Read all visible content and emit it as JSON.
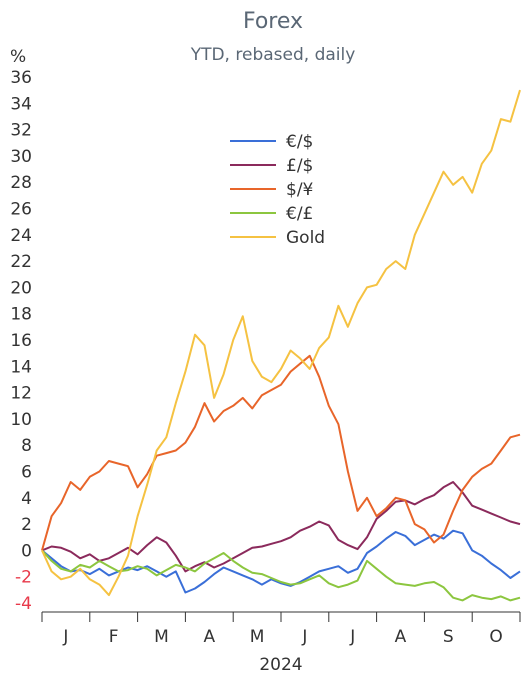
{
  "chart_data": {
    "type": "line",
    "title": "Forex",
    "subtitle": "YTD, rebased, daily",
    "ylabel": "%",
    "year_label": "2024",
    "ylim": [
      -4,
      36
    ],
    "y_ticks": [
      "36",
      "34",
      "32",
      "30",
      "28",
      "26",
      "24",
      "22",
      "20",
      "18",
      "16",
      "14",
      "12",
      "10",
      "8",
      "6",
      "4",
      "2",
      "0",
      "-2",
      "-4"
    ],
    "y_tick_values": [
      36,
      34,
      32,
      30,
      28,
      26,
      24,
      22,
      20,
      18,
      16,
      14,
      12,
      10,
      8,
      6,
      4,
      2,
      0,
      -2,
      -4
    ],
    "negative_tick_color": "#e8394a",
    "x_categories": [
      "J",
      "F",
      "M",
      "A",
      "M",
      "J",
      "J",
      "A",
      "S",
      "O"
    ],
    "x_range": [
      0,
      10
    ],
    "grid": false,
    "legend_placement": "top-center",
    "series": [
      {
        "name": "€/$",
        "color": "#3a6fd8",
        "x": [
          0,
          0.2,
          0.4,
          0.6,
          0.8,
          1,
          1.2,
          1.4,
          1.6,
          1.8,
          2,
          2.2,
          2.4,
          2.6,
          2.8,
          3,
          3.2,
          3.4,
          3.6,
          3.8,
          4,
          4.2,
          4.4,
          4.6,
          4.8,
          5,
          5.2,
          5.4,
          5.6,
          5.8,
          6,
          6.2,
          6.4,
          6.6,
          6.8,
          7,
          7.2,
          7.4,
          7.6,
          7.8,
          8,
          8.2,
          8.4,
          8.6,
          8.8,
          9,
          9.2,
          9.4,
          9.6,
          9.8,
          10
        ],
        "values": [
          0,
          -0.6,
          -1.2,
          -1.6,
          -1.5,
          -1.8,
          -1.4,
          -1.9,
          -1.6,
          -1.3,
          -1.5,
          -1.2,
          -1.6,
          -2.0,
          -1.6,
          -3.2,
          -2.9,
          -2.4,
          -1.8,
          -1.3,
          -1.6,
          -1.9,
          -2.2,
          -2.6,
          -2.2,
          -2.5,
          -2.7,
          -2.4,
          -2.0,
          -1.6,
          -1.4,
          -1.2,
          -1.7,
          -1.4,
          -0.2,
          0.3,
          0.9,
          1.4,
          1.1,
          0.4,
          0.8,
          1.2,
          0.9,
          1.5,
          1.3,
          0.0,
          -0.4,
          -1.0,
          -1.5,
          -2.1,
          -1.6
        ]
      },
      {
        "name": "£/$",
        "color": "#8b2a5c",
        "x": [
          0,
          0.2,
          0.4,
          0.6,
          0.8,
          1,
          1.2,
          1.4,
          1.6,
          1.8,
          2,
          2.2,
          2.4,
          2.6,
          2.8,
          3,
          3.2,
          3.4,
          3.6,
          3.8,
          4,
          4.2,
          4.4,
          4.6,
          4.8,
          5,
          5.2,
          5.4,
          5.6,
          5.8,
          6,
          6.2,
          6.4,
          6.6,
          6.8,
          7,
          7.2,
          7.4,
          7.6,
          7.8,
          8,
          8.2,
          8.4,
          8.6,
          8.8,
          9,
          9.2,
          9.4,
          9.6,
          9.8,
          10
        ],
        "values": [
          0,
          0.3,
          0.2,
          -0.1,
          -0.6,
          -0.3,
          -0.8,
          -0.6,
          -0.2,
          0.2,
          -0.3,
          0.4,
          1.0,
          0.6,
          -0.4,
          -1.6,
          -1.2,
          -0.9,
          -1.3,
          -1.0,
          -0.6,
          -0.2,
          0.2,
          0.3,
          0.5,
          0.7,
          1.0,
          1.5,
          1.8,
          2.2,
          1.9,
          0.8,
          0.4,
          0.1,
          1.0,
          2.4,
          3.0,
          3.7,
          3.8,
          3.5,
          3.9,
          4.2,
          4.8,
          5.2,
          4.4,
          3.4,
          3.1,
          2.8,
          2.5,
          2.2,
          2.0
        ]
      },
      {
        "name": "$/¥",
        "color": "#e8652a",
        "x": [
          0,
          0.2,
          0.4,
          0.6,
          0.8,
          1,
          1.2,
          1.4,
          1.6,
          1.8,
          2,
          2.2,
          2.4,
          2.6,
          2.8,
          3,
          3.2,
          3.4,
          3.6,
          3.8,
          4,
          4.2,
          4.4,
          4.6,
          4.8,
          5,
          5.2,
          5.4,
          5.6,
          5.8,
          6,
          6.2,
          6.4,
          6.6,
          6.8,
          7,
          7.2,
          7.4,
          7.6,
          7.8,
          8,
          8.2,
          8.4,
          8.6,
          8.8,
          9,
          9.2,
          9.4,
          9.6,
          9.8,
          10
        ],
        "values": [
          0,
          2.6,
          3.6,
          5.2,
          4.6,
          5.6,
          6.0,
          6.8,
          6.6,
          6.4,
          4.8,
          5.8,
          7.2,
          7.4,
          7.6,
          8.2,
          9.4,
          11.2,
          9.8,
          10.6,
          11.0,
          11.6,
          10.8,
          11.8,
          12.2,
          12.6,
          13.6,
          14.2,
          14.8,
          13.2,
          11.0,
          9.6,
          6.0,
          3.0,
          4.0,
          2.6,
          3.2,
          4.0,
          3.8,
          2.0,
          1.6,
          0.6,
          1.2,
          3.0,
          4.6,
          5.6,
          6.2,
          6.6,
          7.6,
          8.6,
          8.8
        ]
      },
      {
        "name": "€/£",
        "color": "#8cc63f",
        "x": [
          0,
          0.2,
          0.4,
          0.6,
          0.8,
          1,
          1.2,
          1.4,
          1.6,
          1.8,
          2,
          2.2,
          2.4,
          2.6,
          2.8,
          3,
          3.2,
          3.4,
          3.6,
          3.8,
          4,
          4.2,
          4.4,
          4.6,
          4.8,
          5,
          5.2,
          5.4,
          5.6,
          5.8,
          6,
          6.2,
          6.4,
          6.6,
          6.8,
          7,
          7.2,
          7.4,
          7.6,
          7.8,
          8,
          8.2,
          8.4,
          8.6,
          8.8,
          9,
          9.2,
          9.4,
          9.6,
          9.8,
          10
        ],
        "values": [
          0,
          -0.8,
          -1.4,
          -1.6,
          -1.1,
          -1.3,
          -0.8,
          -1.2,
          -1.6,
          -1.5,
          -1.2,
          -1.4,
          -1.9,
          -1.5,
          -1.1,
          -1.3,
          -1.6,
          -1.0,
          -0.6,
          -0.2,
          -0.8,
          -1.3,
          -1.7,
          -1.8,
          -2.1,
          -2.4,
          -2.6,
          -2.5,
          -2.2,
          -1.9,
          -2.5,
          -2.8,
          -2.6,
          -2.3,
          -0.8,
          -1.4,
          -2.0,
          -2.5,
          -2.6,
          -2.7,
          -2.5,
          -2.4,
          -2.8,
          -3.6,
          -3.8,
          -3.4,
          -3.6,
          -3.7,
          -3.5,
          -3.8,
          -3.6
        ]
      },
      {
        "name": "Gold",
        "color": "#f5c242",
        "x": [
          0,
          0.2,
          0.4,
          0.6,
          0.8,
          1,
          1.2,
          1.4,
          1.6,
          1.8,
          2,
          2.2,
          2.4,
          2.6,
          2.8,
          3,
          3.2,
          3.4,
          3.6,
          3.8,
          4,
          4.2,
          4.4,
          4.6,
          4.8,
          5,
          5.2,
          5.4,
          5.6,
          5.8,
          6,
          6.2,
          6.4,
          6.6,
          6.8,
          7,
          7.2,
          7.4,
          7.6,
          7.8,
          8,
          8.2,
          8.4,
          8.6,
          8.8,
          9,
          9.2,
          9.4,
          9.6,
          9.8,
          10
        ],
        "values": [
          0,
          -1.6,
          -2.2,
          -2.0,
          -1.4,
          -2.2,
          -2.6,
          -3.4,
          -2.0,
          -0.4,
          2.6,
          5.0,
          7.6,
          8.6,
          11.2,
          13.6,
          16.4,
          15.6,
          11.6,
          13.4,
          16.0,
          17.8,
          14.4,
          13.2,
          12.8,
          13.8,
          15.2,
          14.6,
          13.8,
          15.4,
          16.2,
          18.6,
          17.0,
          18.8,
          20.0,
          20.2,
          21.4,
          22.0,
          21.4,
          24.0,
          25.6,
          27.2,
          28.8,
          27.8,
          28.4,
          27.2,
          29.4,
          30.4,
          32.8,
          32.6,
          35.0
        ]
      }
    ]
  }
}
